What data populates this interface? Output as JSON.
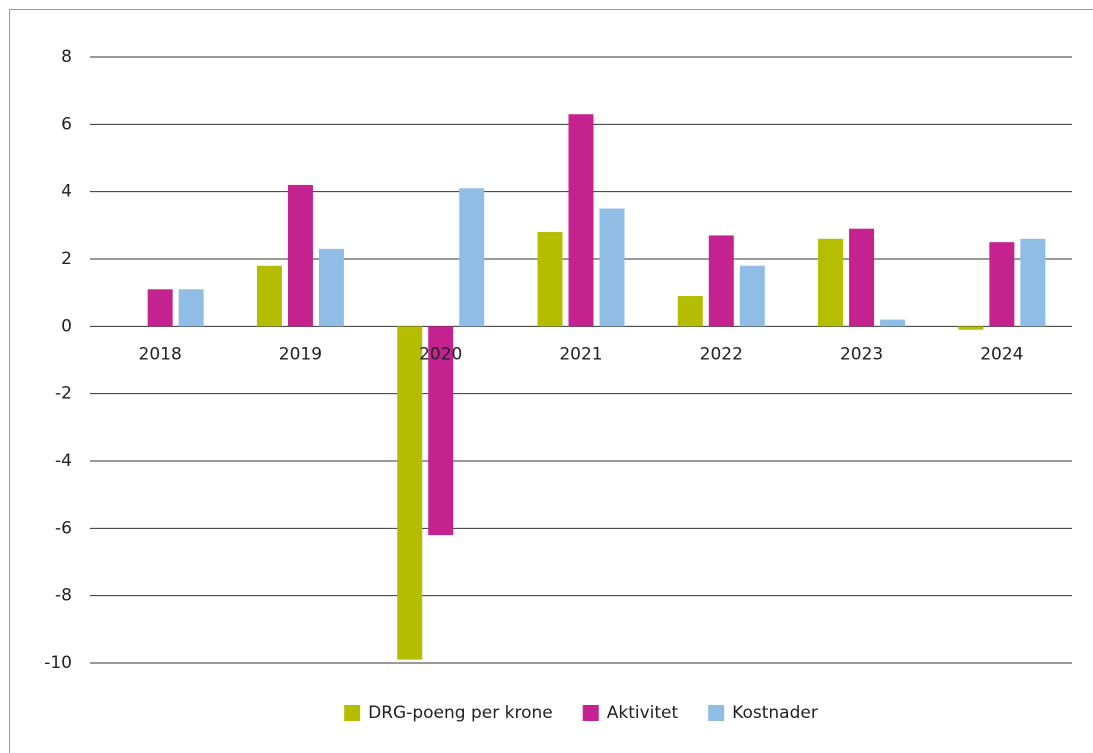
{
  "chart_data": {
    "type": "bar",
    "categories": [
      "2018",
      "2019",
      "2020",
      "2021",
      "2022",
      "2023",
      "2024"
    ],
    "series": [
      {
        "name": "DRG-poeng per krone",
        "color": "#b4bd00",
        "values": [
          null,
          1.8,
          -9.9,
          2.8,
          0.9,
          2.6,
          -0.1
        ]
      },
      {
        "name": "Aktivitet",
        "color": "#c4228e",
        "values": [
          1.1,
          4.2,
          -6.2,
          6.3,
          2.7,
          2.9,
          2.5
        ]
      },
      {
        "name": "Kostnader",
        "color": "#90bde6",
        "values": [
          1.1,
          2.3,
          4.1,
          3.5,
          1.8,
          0.2,
          2.6
        ]
      }
    ],
    "ylim": [
      -10,
      8
    ],
    "yticks": [
      -10,
      -8,
      -6,
      -4,
      -2,
      0,
      2,
      4,
      6,
      8
    ],
    "grid": true,
    "legend": "bottom"
  }
}
